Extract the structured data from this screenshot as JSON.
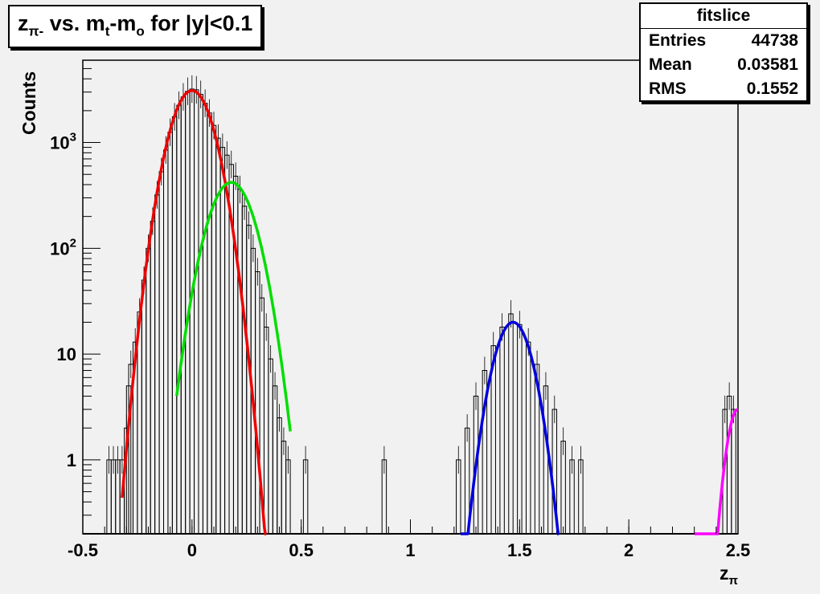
{
  "title": {
    "z": "z",
    "z_sub": "π-",
    "mid": " vs. m",
    "m_sub1": "t",
    "dash": "-m",
    "m_sub2": "o",
    "tail": " for |y|<0.1"
  },
  "stats": {
    "name": "fitslice",
    "rows": [
      {
        "label": "Entries",
        "value": "44738"
      },
      {
        "label": "Mean",
        "value": "0.03581"
      },
      {
        "label": "RMS",
        "value": "0.1552"
      }
    ]
  },
  "chart_data": {
    "type": "line",
    "title": "zπ- vs. mt-mo for |y|<0.1",
    "xlabel": "zπ",
    "ylabel": "Counts",
    "xlim": [
      -0.5,
      2.5
    ],
    "ylim": [
      0.2,
      6000
    ],
    "log_y": true,
    "grid": false,
    "x_ticks": [
      {
        "v": -0.5,
        "label": "-0.5"
      },
      {
        "v": 0,
        "label": "0"
      },
      {
        "v": 0.5,
        "label": "0.5"
      },
      {
        "v": 1,
        "label": "1"
      },
      {
        "v": 1.5,
        "label": "1.5"
      },
      {
        "v": 2,
        "label": "2"
      },
      {
        "v": 2.5,
        "label": "2.5"
      }
    ],
    "y_ticks": [
      {
        "v": 1,
        "label": "1"
      },
      {
        "v": 10,
        "label": "10"
      },
      {
        "v": 100,
        "base": "10",
        "exp": "2"
      },
      {
        "v": 1000,
        "base": "10",
        "exp": "3"
      }
    ],
    "histogram": {
      "color": "#000000",
      "points": [
        [
          -0.38,
          1
        ],
        [
          -0.36,
          1
        ],
        [
          -0.34,
          1
        ],
        [
          -0.32,
          1
        ],
        [
          -0.3,
          2
        ],
        [
          -0.29,
          5
        ],
        [
          -0.28,
          8
        ],
        [
          -0.26,
          13
        ],
        [
          -0.24,
          25
        ],
        [
          -0.22,
          50
        ],
        [
          -0.2,
          100
        ],
        [
          -0.18,
          180
        ],
        [
          -0.16,
          320
        ],
        [
          -0.14,
          530
        ],
        [
          -0.12,
          850
        ],
        [
          -0.1,
          1250
        ],
        [
          -0.08,
          1750
        ],
        [
          -0.06,
          2250
        ],
        [
          -0.04,
          2700
        ],
        [
          -0.02,
          3050
        ],
        [
          0.0,
          3200
        ],
        [
          0.02,
          3150
        ],
        [
          0.04,
          2850
        ],
        [
          0.06,
          2350
        ],
        [
          0.08,
          1900
        ],
        [
          0.1,
          1450
        ],
        [
          0.12,
          1100
        ],
        [
          0.14,
          900
        ],
        [
          0.16,
          760
        ],
        [
          0.18,
          620
        ],
        [
          0.2,
          480
        ],
        [
          0.22,
          360
        ],
        [
          0.24,
          250
        ],
        [
          0.26,
          165
        ],
        [
          0.28,
          100
        ],
        [
          0.3,
          60
        ],
        [
          0.32,
          34
        ],
        [
          0.34,
          18
        ],
        [
          0.36,
          9
        ],
        [
          0.38,
          5
        ],
        [
          0.4,
          2.5
        ],
        [
          0.42,
          1.5
        ],
        [
          0.44,
          1
        ],
        [
          0.52,
          1
        ],
        [
          0.88,
          1
        ],
        [
          1.22,
          1
        ],
        [
          1.26,
          2
        ],
        [
          1.3,
          4
        ],
        [
          1.34,
          7
        ],
        [
          1.38,
          12
        ],
        [
          1.42,
          18
        ],
        [
          1.46,
          24
        ],
        [
          1.5,
          19
        ],
        [
          1.54,
          13
        ],
        [
          1.58,
          8
        ],
        [
          1.62,
          5
        ],
        [
          1.66,
          3
        ],
        [
          1.7,
          1.5
        ],
        [
          1.74,
          1
        ],
        [
          1.78,
          1
        ],
        [
          2.44,
          3
        ],
        [
          2.46,
          4
        ],
        [
          2.48,
          3
        ]
      ]
    },
    "series": [
      {
        "name": "",
        "color": "#ee0000",
        "amp": 3100,
        "mean": 0.0,
        "sigma": 0.076,
        "xmin": -0.32,
        "xmax": 0.34
      },
      {
        "name": "",
        "color": "#00dd00",
        "amp": 420,
        "mean": 0.18,
        "sigma": 0.082,
        "xmin": -0.07,
        "xmax": 0.45
      },
      {
        "name": "",
        "color": "#0000dd",
        "amp": 20,
        "mean": 1.47,
        "sigma": 0.068,
        "xmin": 1.23,
        "xmax": 1.68
      },
      {
        "name": "",
        "color": "#ff00ff",
        "amp": 3,
        "mean": 2.5,
        "sigma": 0.04,
        "xmin": 2.3,
        "xmax": 2.5
      }
    ]
  }
}
